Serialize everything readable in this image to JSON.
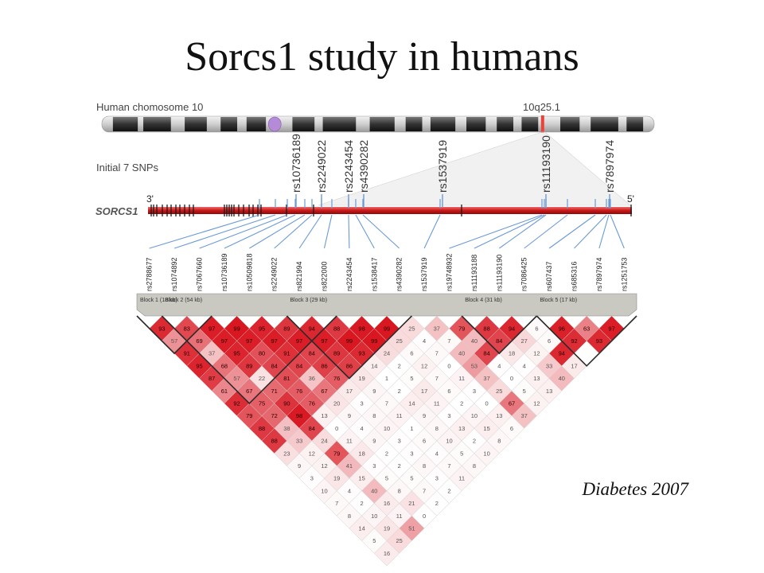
{
  "title": "Sorcs1 study in humans",
  "chromosome": {
    "label": "Human chomosome 10",
    "band_label": "10q25.1",
    "band_fraction": 0.798,
    "centromere_fraction": 0.313,
    "highlight_color": "#e8443a"
  },
  "initial_snps": {
    "label": "Initial 7 SNPs",
    "ids": [
      "rs10736189",
      "rs2249022",
      "rs2243454",
      "rs4390282",
      "rs1537919",
      "rs11193190",
      "rs7897974"
    ]
  },
  "gene": {
    "name": "SORCS1",
    "left_end": "3'",
    "right_end": "5'",
    "color": "#d42a2a"
  },
  "snp_labels": [
    "rs2788677",
    "rs1074892",
    "rs7067660",
    "rs10736189",
    "rs10509818",
    "rs2249022",
    "rs821994",
    "rs822000",
    "rs2243454",
    "rs1538417",
    "rs4390282",
    "rs1537919",
    "rs19748932",
    "rs11193188",
    "rs11193190",
    "rs7086425",
    "rs607437",
    "rs685316",
    "rs7897974",
    "rs1251753"
  ],
  "blocks": [
    {
      "label": "Block 1 (18 kb)"
    },
    {
      "label": "Block 2 (54 kb)"
    },
    {
      "label": "Block 3 (29 kb)"
    },
    {
      "label": "Block 4 (31 kb)"
    },
    {
      "label": "Block 5 (17 kb)"
    }
  ],
  "ld_values": [
    [
      93,
      83,
      97,
      99,
      95,
      89,
      94,
      88,
      98,
      99,
      25,
      37,
      79,
      88,
      94,
      6,
      96,
      63,
      97
    ],
    [
      57,
      69,
      97,
      97,
      97,
      97,
      97,
      99,
      99,
      25,
      4,
      7,
      40,
      84,
      27,
      6,
      92,
      93
    ],
    [
      91,
      37,
      95,
      80,
      91,
      84,
      89,
      93,
      24,
      6,
      7,
      40,
      84,
      18,
      12,
      94
    ],
    [
      95,
      68,
      89,
      84,
      84,
      86,
      86,
      14,
      2,
      12,
      0,
      53,
      4,
      4,
      33,
      17
    ],
    [
      87,
      57,
      22,
      81,
      36,
      76,
      19,
      1,
      5,
      7,
      11,
      37,
      0,
      13,
      40
    ],
    [
      61,
      67,
      71,
      76,
      67,
      17,
      9,
      2,
      17,
      6,
      3,
      25,
      5,
      13
    ],
    [
      92,
      75,
      90,
      76,
      20,
      3,
      7,
      14,
      11,
      2,
      0,
      67,
      12
    ],
    [
      79,
      72,
      98,
      13,
      9,
      8,
      11,
      9,
      3,
      10,
      13,
      37
    ],
    [
      88,
      38,
      84,
      0,
      4,
      10,
      1,
      8,
      13,
      15,
      6
    ],
    [
      88,
      33,
      24,
      11,
      9,
      3,
      6,
      10,
      2,
      8
    ],
    [
      23,
      12,
      79,
      18,
      2,
      3,
      4,
      5,
      10
    ],
    [
      9,
      12,
      41,
      3,
      2,
      8,
      7,
      8
    ],
    [
      3,
      19,
      15,
      5,
      5,
      3,
      11
    ],
    [
      10,
      4,
      40,
      8,
      7,
      2
    ],
    [
      7,
      2,
      16,
      21,
      2
    ],
    [
      8,
      10,
      11,
      0
    ],
    [
      14,
      19,
      51
    ],
    [
      5,
      25
    ],
    [
      16
    ]
  ],
  "ld_colors": {
    "high": "#d8141e",
    "low": "#ffffff",
    "frame": "#2b2b2b"
  },
  "citation": "Diabetes 2007"
}
